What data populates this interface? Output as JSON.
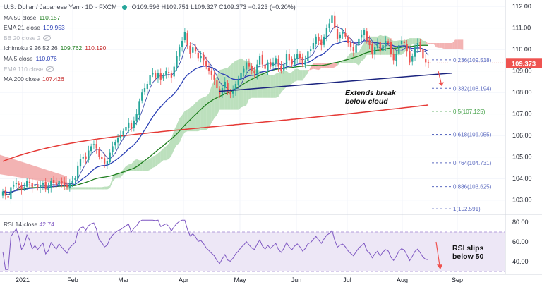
{
  "header": {
    "symbol": "U.S. Dollar / Japanese Yen · 1D · FXCM",
    "ohlc": "O109.596 H109.751 L109.327 C109.373 −0.223 (−0.20%)"
  },
  "indicators": [
    {
      "label": "MA 50 close",
      "value": "110.157",
      "color": "#1e7e1e",
      "hidden": false
    },
    {
      "label": "EMA 21 close",
      "value": "109.953",
      "color": "#2a3fb5",
      "hidden": false
    },
    {
      "label": "BB 20 close 2",
      "value": "",
      "color": "#b2b5be",
      "hidden": true
    },
    {
      "label": "Ichimoku 9 26 52 26",
      "value": "109.762",
      "value2": "110.190",
      "color": "#1e7e1e",
      "color2": "#c62828",
      "hidden": false
    },
    {
      "label": "MA 5 close",
      "value": "110.076",
      "color": "#2a3fb5",
      "hidden": false
    },
    {
      "label": "EMA 110 close",
      "value": "",
      "color": "#b2b5be",
      "hidden": true
    },
    {
      "label": "MA 200 close",
      "value": "107.426",
      "color": "#c62828",
      "hidden": false
    }
  ],
  "rsi": {
    "label": "RSI 14 close",
    "value": "42.74"
  },
  "price_tag": "109.373",
  "annotations": {
    "cloud_note": "Extends break\nbelow cloud",
    "rsi_note": "RSI slips\nbelow 50"
  },
  "colors": {
    "up": "#26a69a",
    "down": "#ef5350",
    "ma50": "#1e7e1e",
    "ema21": "#2a3fb5",
    "ma200": "#e53935",
    "cloud_green": "#a5d6a7",
    "cloud_red": "#ef9a9a",
    "rsi_line": "#7e57c2",
    "rsi_band": "#ede7f6",
    "trend": "#1a237e",
    "price_tag": "#ef5350"
  },
  "chart_data": {
    "type": "candlestick",
    "x_labels": [
      "2021",
      "Feb",
      "Mar",
      "Apr",
      "May",
      "Jun",
      "Jul",
      "Aug",
      "Sep"
    ],
    "price_axis": {
      "ticks": [
        103.0,
        104.0,
        105.0,
        106.0,
        107.0,
        108.0,
        109.0,
        110.0,
        111.0,
        112.0
      ],
      "range": [
        102.4,
        112.3
      ]
    },
    "rsi_axis": {
      "ticks": [
        40.0,
        60.0,
        80.0
      ],
      "range": [
        30,
        85
      ],
      "band": [
        30,
        70
      ]
    },
    "fib_levels": [
      {
        "label": "0.236(109.518)",
        "value": 109.518
      },
      {
        "label": "0.382(108.194)",
        "value": 108.194
      },
      {
        "label": "0.5(107.125)",
        "value": 107.125
      },
      {
        "label": "0.618(106.055)",
        "value": 106.055
      },
      {
        "label": "0.764(104.731)",
        "value": 104.731
      },
      {
        "label": "0.886(103.625)",
        "value": 103.625
      },
      {
        "label": "1(102.591)",
        "value": 102.591
      }
    ],
    "closes": [
      103.4,
      103.2,
      103.1,
      103.6,
      103.7,
      103.8,
      103.7,
      103.5,
      103.6,
      103.9,
      103.8,
      103.6,
      103.7,
      103.6,
      103.7,
      103.8,
      103.5,
      103.6,
      103.9,
      103.8,
      103.7,
      103.9,
      103.8,
      103.7,
      103.6,
      103.8,
      103.9,
      104.0,
      104.6,
      104.9,
      105.0,
      104.9,
      105.3,
      105.5,
      105.6,
      105.4,
      105.0,
      104.9,
      104.7,
      104.8,
      105.2,
      105.5,
      105.7,
      105.9,
      106.0,
      106.2,
      106.4,
      106.6,
      106.3,
      106.7,
      107.0,
      107.6,
      108.0,
      108.2,
      108.4,
      108.8,
      108.9,
      108.7,
      108.9,
      108.6,
      108.8,
      109.0,
      108.9,
      108.7,
      109.2,
      109.7,
      110.1,
      110.4,
      110.8,
      110.2,
      109.8,
      110.1,
      109.9,
      109.6,
      109.7,
      109.5,
      109.2,
      109.0,
      108.8,
      108.6,
      108.2,
      107.9,
      108.2,
      108.5,
      108.0,
      107.9,
      108.1,
      108.4,
      108.6,
      108.9,
      109.1,
      109.4,
      109.2,
      109.0,
      108.9,
      109.3,
      109.7,
      109.3,
      109.1,
      109.4,
      109.2,
      109.4,
      109.6,
      109.2,
      109.0,
      109.3,
      109.8,
      109.5,
      109.3,
      109.6,
      109.8,
      109.6,
      109.3,
      109.5,
      109.9,
      110.0,
      110.3,
      110.6,
      110.4,
      110.2,
      110.6,
      111.0,
      111.2,
      111.6,
      111.0,
      110.5,
      110.7,
      110.8,
      110.6,
      110.3,
      110.1,
      109.9,
      110.2,
      110.5,
      110.7,
      110.9,
      110.4,
      110.2,
      109.8,
      110.1,
      110.3,
      109.9,
      110.2,
      110.4,
      110.3,
      109.8,
      109.5,
      109.8,
      110.2,
      110.4,
      110.3,
      109.9,
      109.4,
      109.7,
      110.1,
      110.3,
      110.0,
      109.6,
      109.4,
      109.373
    ],
    "current_price": 109.373
  }
}
